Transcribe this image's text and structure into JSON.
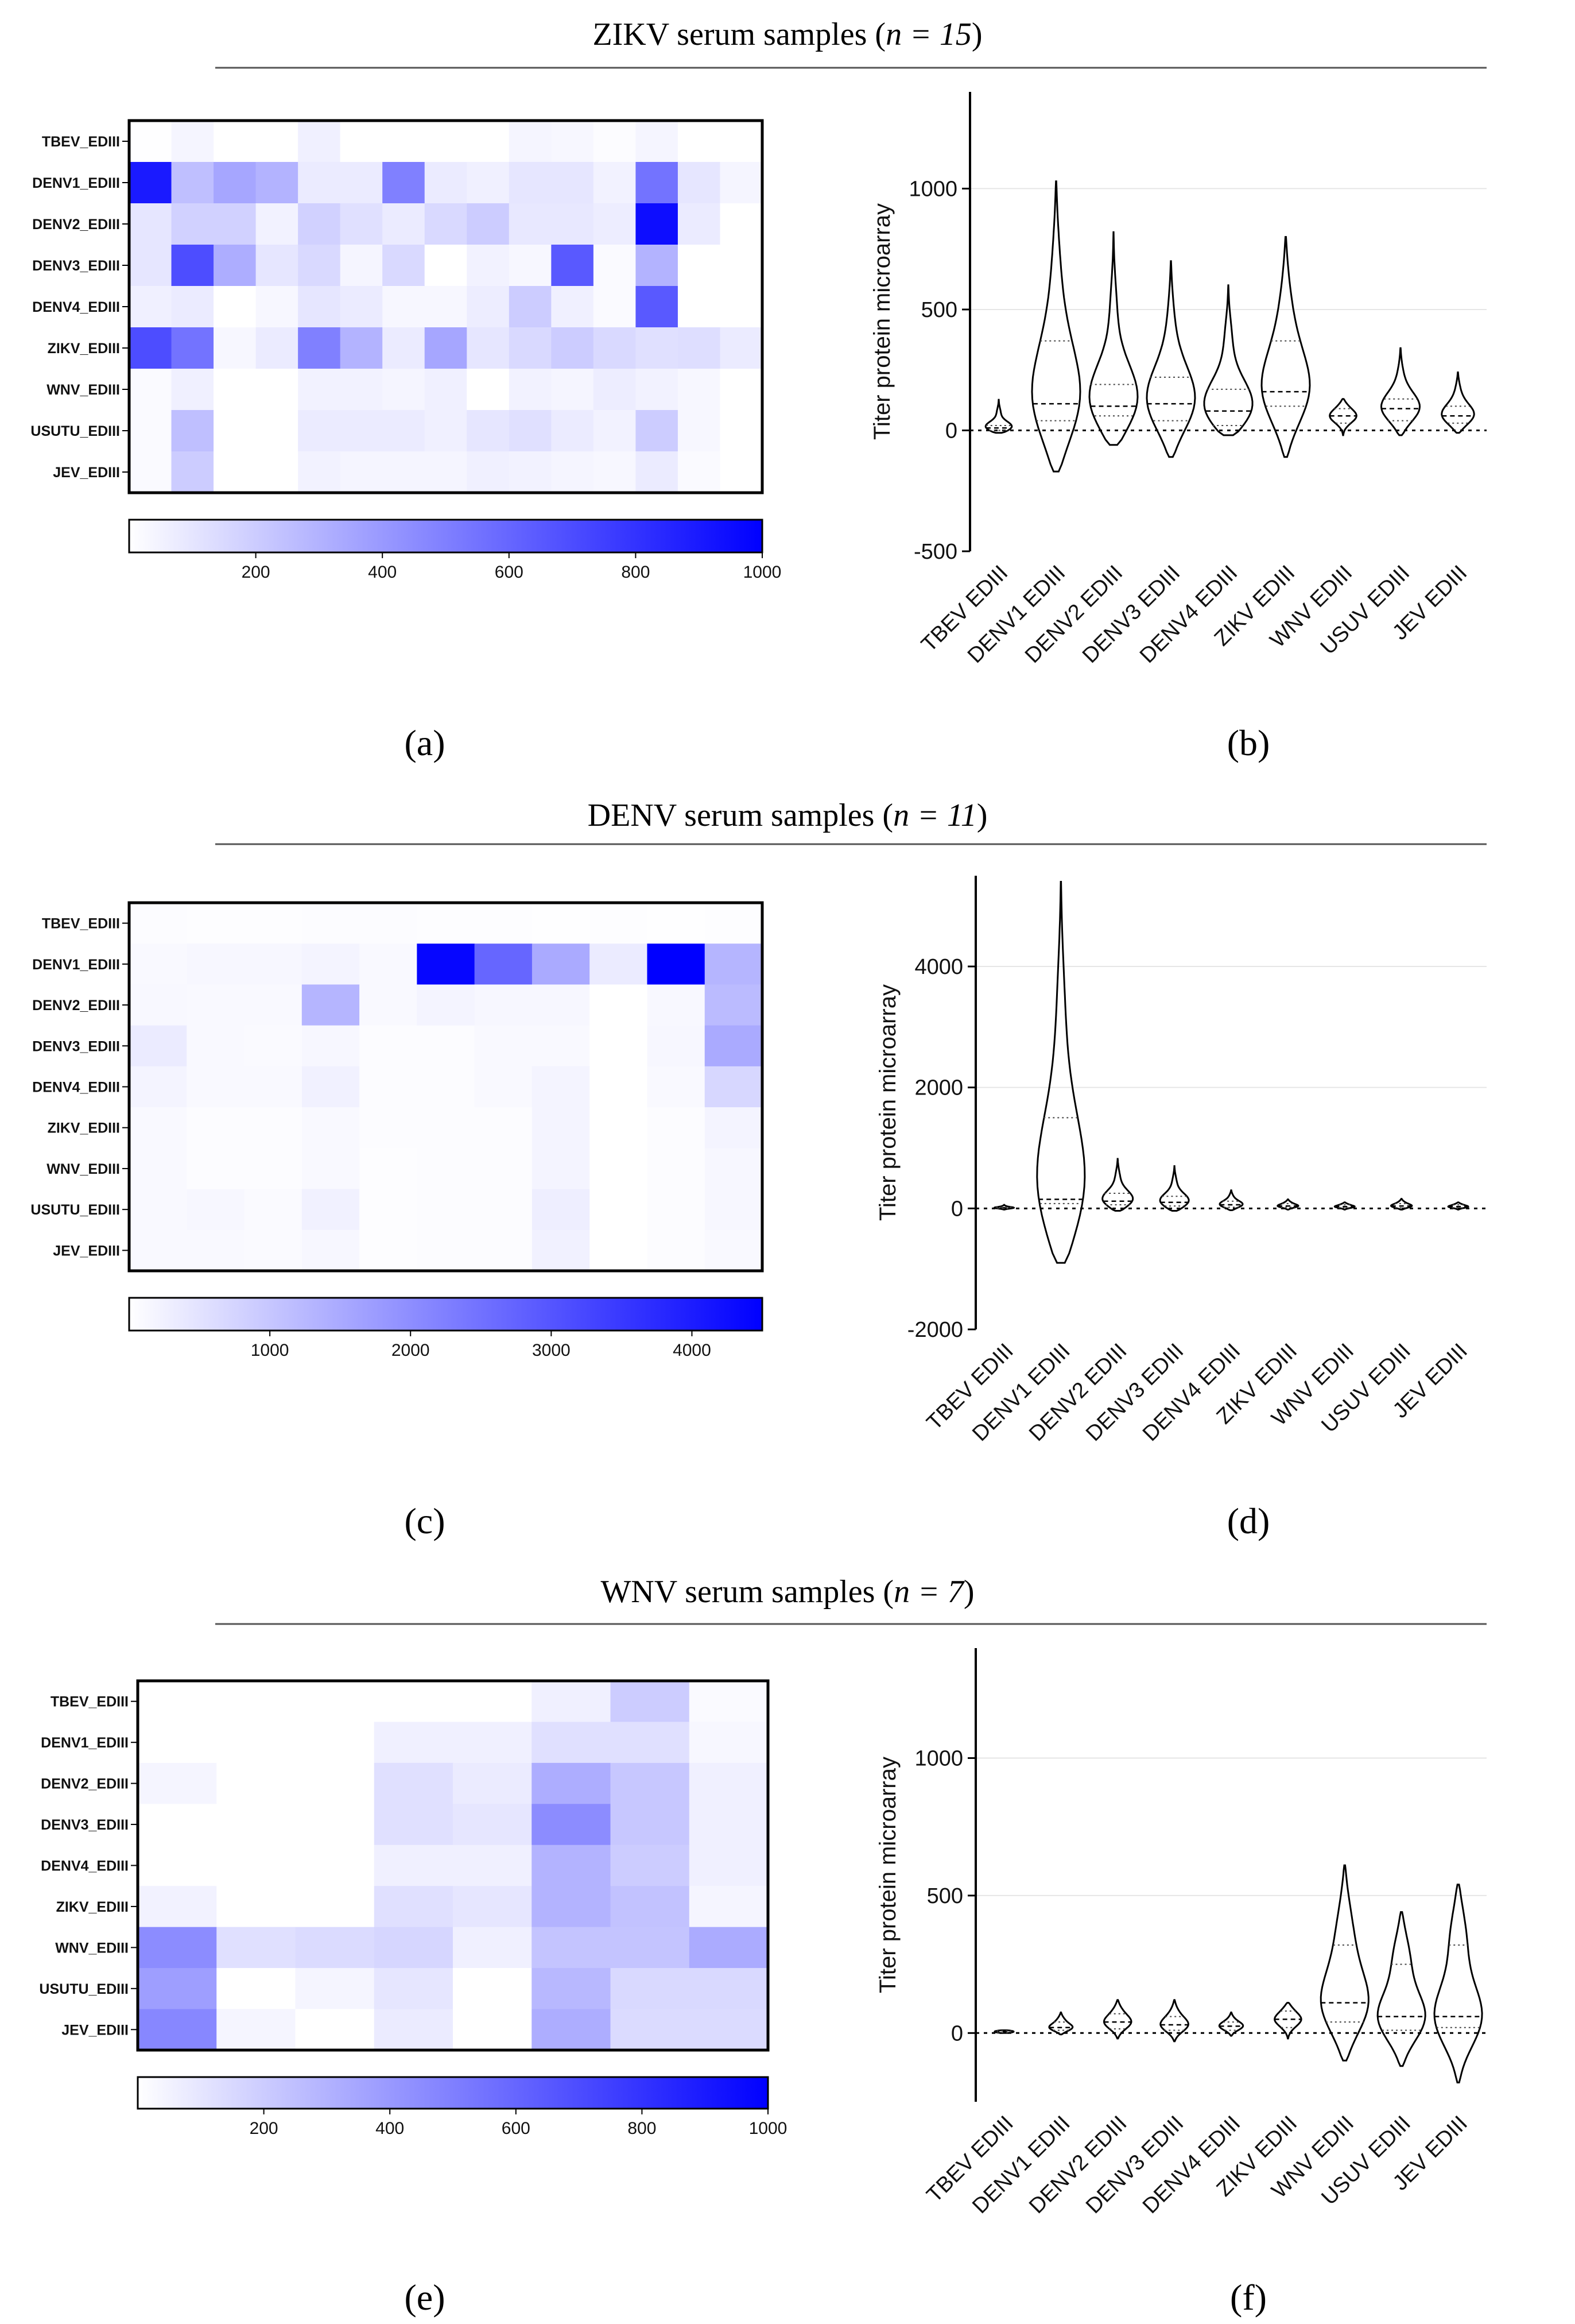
{
  "figure": {
    "sections": [
      {
        "title_prefix": "ZIKV serum samples (",
        "title_n": "n = 15",
        "title_suffix": ")"
      },
      {
        "title_prefix": "DENV serum samples (",
        "title_n": "n = 11",
        "title_suffix": ")"
      },
      {
        "title_prefix": "WNV serum samples (",
        "title_n": "n = 7",
        "title_suffix": ")"
      }
    ],
    "panel_labels": [
      "(a)",
      "(b)",
      "(c)",
      "(d)",
      "(e)",
      "(f)"
    ]
  },
  "colors": {
    "low": "#ffffff",
    "high": "#0000ff",
    "line": "#000000"
  },
  "chart_data": [
    {
      "id": "a",
      "type": "heatmap",
      "rows": [
        "TBEV_EDIII",
        "DENV1_EDIII",
        "DENV2_EDIII",
        "DENV3_EDIII",
        "DENV4_EDIII",
        "ZIKV_EDIII",
        "WNV_EDIII",
        "USUTU_EDIII",
        "JEV_EDIII"
      ],
      "values": [
        [
          5,
          40,
          0,
          0,
          60,
          0,
          0,
          0,
          0,
          40,
          30,
          10,
          40,
          0,
          0
        ],
        [
          900,
          250,
          350,
          300,
          80,
          80,
          500,
          80,
          60,
          100,
          100,
          50,
          550,
          100,
          40
        ],
        [
          100,
          180,
          180,
          50,
          180,
          120,
          80,
          150,
          200,
          90,
          90,
          70,
          950,
          80,
          0
        ],
        [
          100,
          700,
          320,
          100,
          150,
          40,
          150,
          0,
          50,
          30,
          650,
          20,
          300,
          0,
          0
        ],
        [
          60,
          80,
          0,
          30,
          100,
          80,
          30,
          30,
          70,
          200,
          60,
          20,
          650,
          0,
          0
        ],
        [
          700,
          550,
          30,
          80,
          500,
          300,
          80,
          350,
          100,
          150,
          200,
          150,
          120,
          130,
          80
        ],
        [
          20,
          60,
          0,
          0,
          50,
          50,
          40,
          60,
          0,
          50,
          40,
          70,
          50,
          30,
          0
        ],
        [
          20,
          250,
          0,
          0,
          80,
          80,
          80,
          60,
          100,
          120,
          80,
          50,
          200,
          30,
          0
        ],
        [
          20,
          200,
          0,
          0,
          50,
          40,
          40,
          40,
          60,
          50,
          40,
          30,
          80,
          20,
          0
        ]
      ],
      "colorbar_range": [
        0,
        1000
      ],
      "colorbar_ticks": [
        "200",
        "400",
        "600",
        "800",
        "1000"
      ]
    },
    {
      "id": "b",
      "type": "violin",
      "ylabel": "Titer protein microarray",
      "ylim": [
        -500,
        1400
      ],
      "yticks": [
        "-500",
        "0",
        "500",
        "1000"
      ],
      "categories": [
        "TBEV EDIII",
        "DENV1 EDIII",
        "DENV2 EDIII",
        "DENV3 EDIII",
        "DENV4 EDIII",
        "ZIKV EDIII",
        "WNV EDIII",
        "USUV EDIII",
        "JEV EDIII"
      ],
      "violins": [
        {
          "min": -10,
          "max": 130,
          "median": 10,
          "q1": 0,
          "q3": 20
        },
        {
          "min": -170,
          "max": 1030,
          "median": 110,
          "q1": 40,
          "q3": 370
        },
        {
          "min": -60,
          "max": 820,
          "median": 100,
          "q1": 60,
          "q3": 190
        },
        {
          "min": -110,
          "max": 700,
          "median": 110,
          "q1": 40,
          "q3": 220
        },
        {
          "min": -20,
          "max": 600,
          "median": 80,
          "q1": 20,
          "q3": 170
        },
        {
          "min": -110,
          "max": 800,
          "median": 160,
          "q1": 100,
          "q3": 370
        },
        {
          "min": -20,
          "max": 130,
          "median": 60,
          "q1": 30,
          "q3": 90
        },
        {
          "min": -20,
          "max": 340,
          "median": 90,
          "q1": 40,
          "q3": 130
        },
        {
          "min": -10,
          "max": 240,
          "median": 60,
          "q1": 30,
          "q3": 100
        }
      ]
    },
    {
      "id": "c",
      "type": "heatmap",
      "rows": [
        "TBEV_EDIII",
        "DENV1_EDIII",
        "DENV2_EDIII",
        "DENV3_EDIII",
        "DENV4_EDIII",
        "ZIKV_EDIII",
        "WNV_EDIII",
        "USUTU_EDIII",
        "JEV_EDIII"
      ],
      "values": [
        [
          50,
          30,
          40,
          60,
          50,
          40,
          30,
          20,
          30,
          20,
          30
        ],
        [
          100,
          150,
          150,
          200,
          100,
          4400,
          2700,
          1500,
          350,
          4500,
          1300
        ],
        [
          120,
          100,
          100,
          1300,
          100,
          200,
          150,
          150,
          0,
          120,
          1200
        ],
        [
          350,
          100,
          80,
          150,
          50,
          60,
          100,
          100,
          0,
          150,
          1500
        ],
        [
          200,
          100,
          100,
          250,
          50,
          60,
          100,
          200,
          0,
          100,
          700
        ],
        [
          100,
          60,
          60,
          100,
          50,
          60,
          60,
          200,
          0,
          50,
          200
        ],
        [
          100,
          60,
          60,
          100,
          40,
          60,
          60,
          200,
          0,
          50,
          150
        ],
        [
          100,
          150,
          80,
          250,
          40,
          60,
          60,
          300,
          0,
          50,
          150
        ],
        [
          100,
          100,
          80,
          150,
          40,
          60,
          60,
          250,
          0,
          50,
          100
        ]
      ],
      "colorbar_range": [
        0,
        4500
      ],
      "colorbar_ticks": [
        "1000",
        "2000",
        "3000",
        "4000"
      ]
    },
    {
      "id": "d",
      "type": "violin",
      "ylabel": "Titer protein microarray",
      "ylim": [
        -2000,
        5500
      ],
      "yticks": [
        "-2000",
        "0",
        "2000",
        "4000"
      ],
      "categories": [
        "TBEV EDIII",
        "DENV1 EDIII",
        "DENV2 EDIII",
        "DENV3 EDIII",
        "DENV4 EDIII",
        "ZIKV EDIII",
        "WNV EDIII",
        "USUV EDIII",
        "JEV EDIII"
      ],
      "violins": [
        {
          "min": -20,
          "max": 60,
          "median": 10,
          "q1": 0,
          "q3": 20
        },
        {
          "min": -900,
          "max": 5400,
          "median": 150,
          "q1": 80,
          "q3": 1500
        },
        {
          "min": -40,
          "max": 820,
          "median": 120,
          "q1": 60,
          "q3": 250
        },
        {
          "min": -40,
          "max": 700,
          "median": 100,
          "q1": 40,
          "q3": 200
        },
        {
          "min": -30,
          "max": 300,
          "median": 60,
          "q1": 20,
          "q3": 120
        },
        {
          "min": -20,
          "max": 150,
          "median": 40,
          "q1": 20,
          "q3": 80
        },
        {
          "min": -20,
          "max": 100,
          "median": 30,
          "q1": 10,
          "q3": 60
        },
        {
          "min": -20,
          "max": 160,
          "median": 40,
          "q1": 10,
          "q3": 80
        },
        {
          "min": -20,
          "max": 100,
          "median": 30,
          "q1": 10,
          "q3": 60
        }
      ]
    },
    {
      "id": "e",
      "type": "heatmap",
      "rows": [
        "TBEV_EDIII",
        "DENV1_EDIII",
        "DENV2_EDIII",
        "DENV3_EDIII",
        "DENV4_EDIII",
        "ZIKV_EDIII",
        "WNV_EDIII",
        "USUTU_EDIII",
        "JEV_EDIII"
      ],
      "values": [
        [
          0,
          0,
          0,
          0,
          0,
          60,
          200,
          20
        ],
        [
          0,
          0,
          0,
          60,
          60,
          120,
          120,
          30
        ],
        [
          40,
          0,
          0,
          120,
          80,
          320,
          220,
          60
        ],
        [
          0,
          0,
          0,
          120,
          100,
          450,
          220,
          60
        ],
        [
          0,
          0,
          0,
          60,
          60,
          300,
          200,
          60
        ],
        [
          50,
          0,
          0,
          120,
          100,
          300,
          240,
          40
        ],
        [
          450,
          120,
          140,
          160,
          60,
          230,
          230,
          330
        ],
        [
          380,
          0,
          40,
          100,
          0,
          280,
          150,
          150
        ],
        [
          470,
          40,
          0,
          80,
          0,
          320,
          140,
          140
        ]
      ],
      "colorbar_range": [
        0,
        1000
      ],
      "colorbar_ticks": [
        "200",
        "400",
        "600",
        "800",
        "1000"
      ]
    },
    {
      "id": "f",
      "type": "violin",
      "ylabel": "Titer protein microarray",
      "ylim": [
        -250,
        1400
      ],
      "yticks": [
        "0",
        "500",
        "1000"
      ],
      "categories": [
        "TBEV EDIII",
        "DENV1 EDIII",
        "DENV2 EDIII",
        "DENV3 EDIII",
        "DENV4 EDIII",
        "ZIKV EDIII",
        "WNV EDIII",
        "USUV EDIII",
        "JEV EDIII"
      ],
      "violins": [
        {
          "min": 0,
          "max": 10,
          "median": 5,
          "q1": 2,
          "q3": 8
        },
        {
          "min": -5,
          "max": 75,
          "median": 20,
          "q1": 10,
          "q3": 40
        },
        {
          "min": -20,
          "max": 120,
          "median": 40,
          "q1": 15,
          "q3": 70
        },
        {
          "min": -30,
          "max": 120,
          "median": 30,
          "q1": 10,
          "q3": 60
        },
        {
          "min": -10,
          "max": 75,
          "median": 25,
          "q1": 10,
          "q3": 40
        },
        {
          "min": -20,
          "max": 110,
          "median": 50,
          "q1": 20,
          "q3": 80
        },
        {
          "min": -100,
          "max": 610,
          "median": 110,
          "q1": 40,
          "q3": 320
        },
        {
          "min": -120,
          "max": 440,
          "median": 60,
          "q1": 10,
          "q3": 250
        },
        {
          "min": -180,
          "max": 540,
          "median": 60,
          "q1": 20,
          "q3": 320
        }
      ]
    }
  ]
}
